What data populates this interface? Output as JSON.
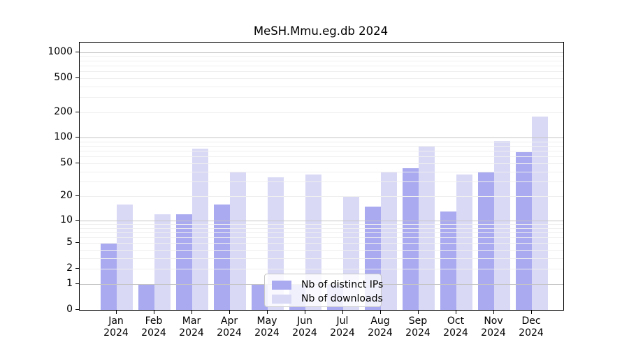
{
  "chart_data": {
    "type": "bar",
    "title": "MeSH.Mmu.eg.db 2024",
    "categories": [
      "Jan",
      "Feb",
      "Mar",
      "Apr",
      "May",
      "Jun",
      "Jul",
      "Aug",
      "Sep",
      "Oct",
      "Nov",
      "Dec"
    ],
    "category_year": "2024",
    "series": [
      {
        "name": "Nb of distinct IPs",
        "color": "#aaaaf0",
        "values": [
          5,
          1,
          12,
          16,
          1,
          1,
          1,
          15,
          44,
          13,
          39,
          67
        ]
      },
      {
        "name": "Nb of downloads",
        "color": "#d9d9f6",
        "values": [
          16,
          12,
          75,
          39,
          34,
          37,
          20,
          40,
          79,
          37,
          91,
          176
        ]
      }
    ],
    "y_axis": {
      "scale": "log10(x+1)",
      "ticks": [
        0,
        1,
        2,
        5,
        10,
        20,
        50,
        100,
        200,
        500,
        1000
      ],
      "range": [
        0,
        1000
      ],
      "major_gridlines_at": [
        1,
        10,
        100,
        1000
      ]
    },
    "grid": {
      "on": true,
      "major_color": "#c4c4c4",
      "minor_color": "#efefef"
    },
    "legend": {
      "position": "inside-bottom-center"
    },
    "colors": {
      "axis": "#000000",
      "background": "#ffffff"
    }
  }
}
